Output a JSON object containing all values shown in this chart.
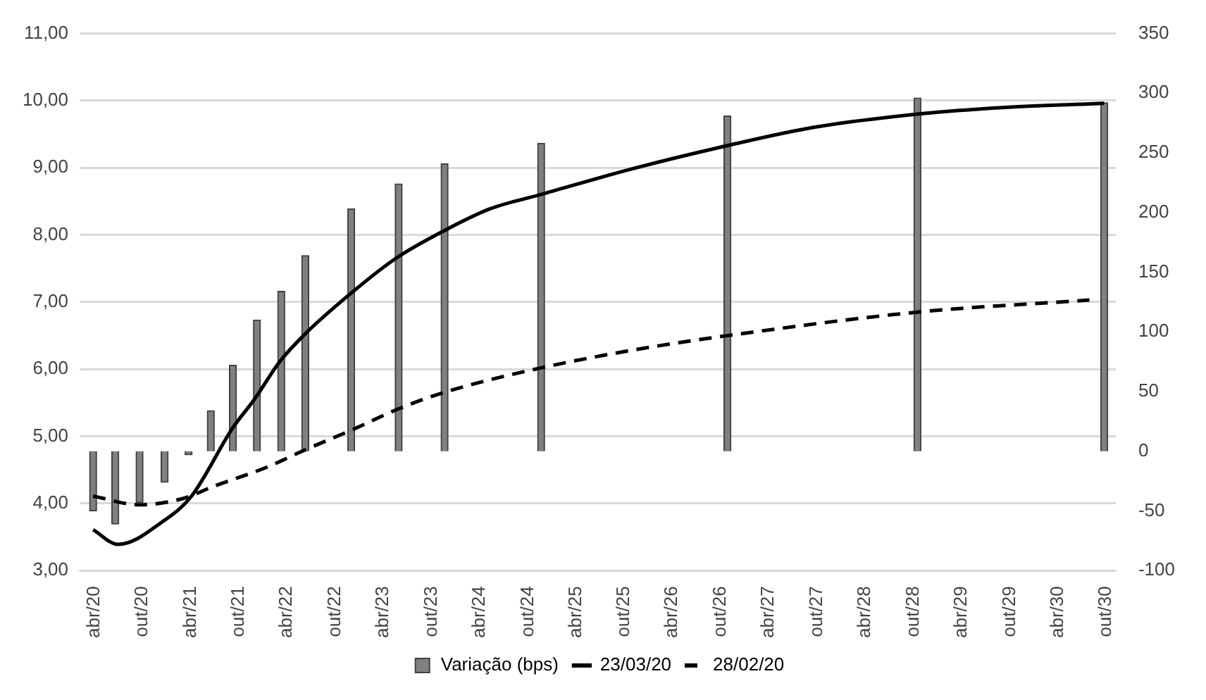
{
  "chart_data": {
    "type": "bar",
    "legend": "bottom",
    "grid": "y",
    "marker": "none",
    "xlim": [
      "2020-02-06",
      "2030-11-07"
    ],
    "xticks": [
      {
        "value": "2020-04-01",
        "label": "abr/20"
      },
      {
        "value": "2020-10-01",
        "label": "out/20"
      },
      {
        "value": "2021-04-01",
        "label": "abr/21"
      },
      {
        "value": "2021-10-01",
        "label": "out/21"
      },
      {
        "value": "2022-04-01",
        "label": "abr/22"
      },
      {
        "value": "2022-10-01",
        "label": "out/22"
      },
      {
        "value": "2023-04-01",
        "label": "abr/23"
      },
      {
        "value": "2023-10-01",
        "label": "out/23"
      },
      {
        "value": "2024-04-01",
        "label": "abr/24"
      },
      {
        "value": "2024-10-01",
        "label": "out/24"
      },
      {
        "value": "2025-04-01",
        "label": "abr/25"
      },
      {
        "value": "2025-10-01",
        "label": "out/25"
      },
      {
        "value": "2026-04-01",
        "label": "abr/26"
      },
      {
        "value": "2026-10-01",
        "label": "out/26"
      },
      {
        "value": "2027-04-01",
        "label": "abr/27"
      },
      {
        "value": "2027-10-01",
        "label": "out/27"
      },
      {
        "value": "2028-04-01",
        "label": "abr/28"
      },
      {
        "value": "2028-10-01",
        "label": "out/28"
      },
      {
        "value": "2029-04-01",
        "label": "abr/29"
      },
      {
        "value": "2029-10-01",
        "label": "out/29"
      },
      {
        "value": "2030-04-01",
        "label": "abr/30"
      },
      {
        "value": "2030-10-01",
        "label": "out/30"
      }
    ],
    "ylim": [
      3,
      11
    ],
    "yticks": [
      {
        "value": 3,
        "label": "3,00"
      },
      {
        "value": 4,
        "label": "4,00"
      },
      {
        "value": 5,
        "label": "5,00"
      },
      {
        "value": 6,
        "label": "6,00"
      },
      {
        "value": 7,
        "label": "7,00"
      },
      {
        "value": 8,
        "label": "8,00"
      },
      {
        "value": 9,
        "label": "9,00"
      },
      {
        "value": 10,
        "label": "10,00"
      },
      {
        "value": 11,
        "label": "11,00"
      }
    ],
    "y2lim": [
      -100,
      350
    ],
    "y2ticks": [
      -100,
      -50,
      0,
      50,
      100,
      150,
      200,
      250,
      300,
      350
    ],
    "series": [
      {
        "name": "Variação (bps)",
        "axis": "y2",
        "color": "#808080",
        "x": [
          "2020-03-28",
          "2020-06-20",
          "2020-09-20",
          "2020-12-24",
          "2021-03-25",
          "2021-06-17",
          "2021-09-09",
          "2021-12-09",
          "2022-03-11",
          "2022-06-10",
          "2022-12-01",
          "2023-05-30",
          "2023-11-20",
          "2024-11-20",
          "2026-10-27",
          "2028-10-16",
          "2030-09-24"
        ],
        "values": [
          -50,
          -61,
          -43,
          -26,
          -3,
          34,
          72,
          110,
          134,
          164,
          203,
          224,
          241,
          258,
          281,
          296,
          292
        ]
      },
      {
        "name": "23/03/20",
        "type": "line",
        "line_style": "solid",
        "color": "#000000",
        "x": [
          "2020-03-28",
          "2020-07-01",
          "2020-12-20",
          "2021-04-05",
          "2021-09-09",
          "2021-12-01",
          "2022-03-03",
          "2022-06-03",
          "2022-11-24",
          "2023-05-19",
          "2023-11-17",
          "2024-05-11",
          "2024-11-17",
          "2025-10-27",
          "2026-10-27",
          "2027-09-16",
          "2028-10-16",
          "2029-09-16",
          "2030-09-24"
        ],
        "values": [
          3.61,
          3.39,
          3.74,
          4.11,
          5.13,
          5.56,
          6.1,
          6.5,
          7.11,
          7.65,
          8.06,
          8.39,
          8.6,
          8.98,
          9.33,
          9.6,
          9.8,
          9.9,
          9.96
        ]
      },
      {
        "name": "28/02/20",
        "type": "line",
        "line_style": "dashed",
        "color": "#000000",
        "x": [
          "2020-03-28",
          "2020-09-20",
          "2021-02-28",
          "2021-07-01",
          "2022-01-15",
          "2022-06-10",
          "2022-12-01",
          "2023-05-30",
          "2023-12-01",
          "2024-11-20",
          "2025-10-27",
          "2026-10-27",
          "2028-10-16",
          "2030-07-30"
        ],
        "values": [
          4.11,
          3.98,
          4.07,
          4.26,
          4.54,
          4.8,
          5.09,
          5.41,
          5.67,
          6.02,
          6.28,
          6.5,
          6.85,
          7.03
        ]
      }
    ]
  }
}
